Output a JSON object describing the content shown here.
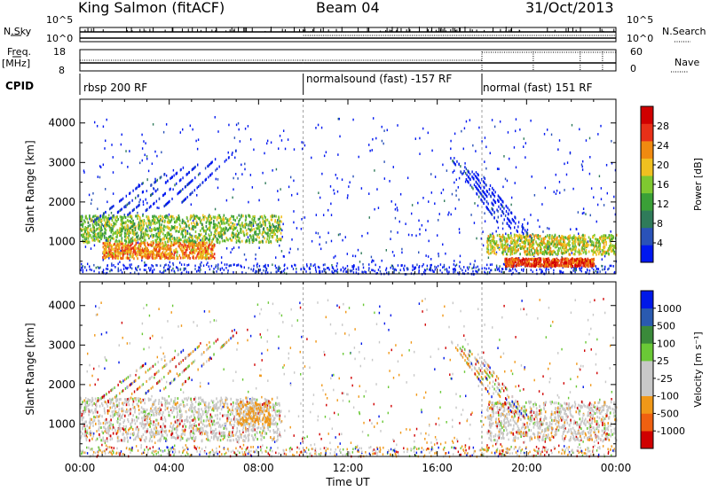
{
  "header": {
    "radar": "King Salmon (fitACF)",
    "beam": "Beam 04",
    "date": "31/Oct/2013"
  },
  "panels": {
    "nsky_label": "N.Sky",
    "nsky_ticks": [
      "10^5",
      "10^0"
    ],
    "nsearch_label": "N.Search",
    "nsearch_ticks": [
      "10^5",
      "10^0"
    ],
    "freq_label": "Freq.",
    "freq_unit": "[MHz]",
    "freq_ticks": [
      "18",
      "8"
    ],
    "nave_label": "Nave",
    "nave_ticks": [
      "60",
      "0"
    ],
    "cpid_label": "CPID",
    "cpid_segments": [
      {
        "label": "rbsp 200 RF",
        "start": 0,
        "end": 10
      },
      {
        "label": "normalsound (fast) -157 RF",
        "start": 10,
        "end": 18
      },
      {
        "label": "normal (fast) 151 RF",
        "start": 18,
        "end": 24
      }
    ]
  },
  "colors": {
    "power": [
      "#0018f0",
      "#2a52b8",
      "#2f7b5a",
      "#3aa037",
      "#7fc830",
      "#f0c020",
      "#f08a10",
      "#e83018",
      "#d00000"
    ],
    "velocity": [
      "#0018e8",
      "#2a5ab0",
      "#3a8a3a",
      "#6ac836",
      "#c8c8c8",
      "#c8c8c8",
      "#f09818",
      "#ef6010",
      "#d00000"
    ]
  },
  "chart_data": [
    {
      "type": "heatmap",
      "title": "",
      "xlabel": "Time UT",
      "ylabel": "Slant Range [km]",
      "xlim": [
        0,
        24
      ],
      "ylim": [
        180,
        4600
      ],
      "x_ticks": [
        "00:00",
        "04:00",
        "08:00",
        "12:00",
        "16:00",
        "20:00",
        "00:00"
      ],
      "y_ticks": [
        "1000",
        "2000",
        "3000",
        "4000"
      ],
      "colorbar": {
        "label": "Power [dB]",
        "ticks": [
          "4",
          "8",
          "12",
          "16",
          "20",
          "24",
          "28"
        ],
        "range": [
          0,
          30
        ]
      },
      "features": [
        {
          "t_start": 0,
          "t_end": 9,
          "range_km_start": 1000,
          "range_km_end": 1700,
          "value": 14
        },
        {
          "t_start": 1,
          "t_end": 6,
          "range_km_start": 600,
          "range_km_end": 1000,
          "value": 22
        },
        {
          "t_start": 18.2,
          "t_end": 24,
          "range_km_start": 700,
          "range_km_end": 1200,
          "value": 17
        },
        {
          "t_start": 19,
          "t_end": 23,
          "range_km_start": 400,
          "range_km_end": 600,
          "value": 26
        }
      ]
    },
    {
      "type": "heatmap",
      "title": "",
      "xlabel": "Time UT",
      "ylabel": "Slant Range [km]",
      "xlim": [
        0,
        24
      ],
      "ylim": [
        180,
        4600
      ],
      "x_ticks": [
        "00:00",
        "04:00",
        "08:00",
        "12:00",
        "16:00",
        "20:00",
        "00:00"
      ],
      "y_ticks": [
        "1000",
        "2000",
        "3000",
        "4000"
      ],
      "colorbar": {
        "label": "Velocity [m s⁻¹]",
        "ticks": [
          "1000",
          "500",
          "100",
          "25",
          "-25",
          "-100",
          "-500",
          "-1000"
        ],
        "range": [
          -1000,
          1000
        ]
      },
      "features": [
        {
          "t_start": 0,
          "t_end": 9,
          "range_km_start": 600,
          "range_km_end": 1700,
          "value": 0
        },
        {
          "t_start": 7,
          "t_end": 8.5,
          "range_km_start": 1000,
          "range_km_end": 1600,
          "value": -200
        },
        {
          "t_start": 18.2,
          "t_end": 24,
          "range_km_start": 600,
          "range_km_end": 1600,
          "value": 0
        }
      ]
    }
  ]
}
